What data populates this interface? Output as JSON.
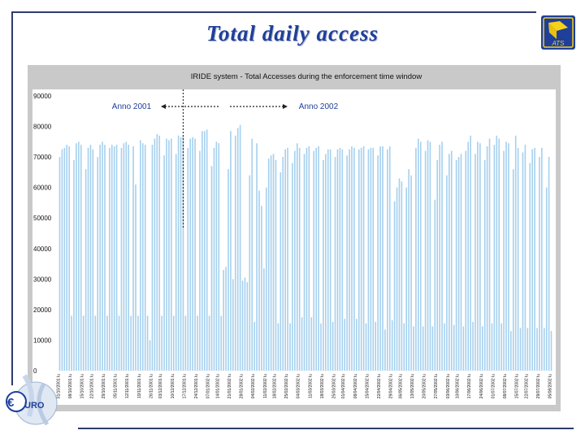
{
  "slide": {
    "title": "Total daily access",
    "logo_text": "ATS",
    "side_logo_text": "URO"
  },
  "colors": {
    "title": "#1f3f9a",
    "frame": "#2d3b6e",
    "bar": "#a6d0ee",
    "panel": "#c9c9c9",
    "divider": "#333333"
  },
  "chart_data": {
    "type": "bar",
    "title": "IRIDE system - Total Accesses during the enforcement time window",
    "xlabel": "",
    "ylabel": "",
    "ylim": [
      0,
      90000
    ],
    "yticks": [
      0,
      10000,
      20000,
      30000,
      40000,
      50000,
      60000,
      70000,
      80000,
      90000
    ],
    "grid": false,
    "legend": "none",
    "annotations": {
      "left_period": "Anno 2001",
      "right_period": "Anno 2002",
      "divider_after_index": 52
    },
    "x_tick_labels": [
      "01/10/2001 lu",
      "08/10/2001 lu",
      "15/10/2001 lu",
      "22/10/2001 lu",
      "29/10/2001 lu",
      "05/11/2001 lu",
      "12/11/2001 lu",
      "19/11/2001 lu",
      "26/11/2001 lu",
      "03/12/2001 lu",
      "10/12/2001 lu",
      "17/12/2001 lu",
      "24/12/2001 lu",
      "07/01/2002 lu",
      "14/01/2002 lu",
      "21/01/2002 lu",
      "28/01/2002 lu",
      "04/02/2002 lu",
      "11/02/2002 lu",
      "18/02/2002 lu",
      "25/02/2002 lu",
      "04/03/2002 lu",
      "11/03/2002 lu",
      "18/03/2002 lu",
      "25/03/2002 lu",
      "01/04/2002 lu",
      "08/04/2002 lu",
      "15/04/2002 lu",
      "22/04/2002 lu",
      "29/04/2002 lu",
      "06/05/2002 lu",
      "13/05/2002 lu",
      "20/05/2002 lu",
      "27/05/2002 lu",
      "03/06/2002 lu",
      "10/06/2002 lu",
      "17/06/2002 lu",
      "24/06/2002 lu",
      "01/07/2002 lu",
      "08/07/2002 lu",
      "15/07/2002 lu",
      "22/07/2002 lu",
      "29/07/2002 lu",
      "05/08/2002 lu"
    ],
    "values": [
      70000,
      72500,
      73000,
      74000,
      73500,
      18000,
      69000,
      74500,
      75000,
      74000,
      18000,
      66000,
      73000,
      74000,
      72500,
      18000,
      70000,
      74000,
      75000,
      74000,
      18000,
      73000,
      74000,
      73500,
      74000,
      18000,
      73000,
      74500,
      75000,
      74000,
      18000,
      73500,
      61000,
      18000,
      75500,
      74500,
      74000,
      18000,
      10000,
      74000,
      76000,
      77500,
      77000,
      18000,
      70500,
      76000,
      75500,
      76000,
      18000,
      71000,
      77000,
      76500,
      77000,
      18000,
      73000,
      76000,
      76500,
      76000,
      18000,
      72000,
      78500,
      78500,
      79000,
      18000,
      67000,
      73000,
      75000,
      74500,
      18000,
      33000,
      34000,
      66000,
      78500,
      30000,
      77000,
      79500,
      80500,
      29500,
      30500,
      29000,
      64000,
      76000,
      16000,
      74500,
      59000,
      54000,
      33500,
      60000,
      69500,
      70500,
      71000,
      69000,
      15500,
      65000,
      70000,
      72500,
      73000,
      15500,
      68000,
      72000,
      74500,
      73000,
      17500,
      71000,
      73000,
      73500,
      17500,
      72000,
      73000,
      73500,
      15500,
      69000,
      71000,
      72500,
      72500,
      16000,
      70000,
      72500,
      73000,
      72500,
      17000,
      70500,
      72500,
      73500,
      73000,
      17000,
      72500,
      73000,
      73500,
      15500,
      72500,
      73000,
      73000,
      16000,
      70500,
      73500,
      73500,
      13500,
      72500,
      73500,
      16500,
      55500,
      60000,
      63000,
      62000,
      15500,
      60000,
      66000,
      64000,
      14500,
      73000,
      76000,
      75000,
      14500,
      72000,
      75500,
      75000,
      14500,
      56000,
      69000,
      74000,
      75000,
      15500,
      64000,
      71000,
      72000,
      15000,
      69000,
      70000,
      71000,
      14500,
      72000,
      75000,
      77000,
      16000,
      71000,
      75000,
      74500,
      14500,
      69000,
      73500,
      76000,
      15500,
      74000,
      77000,
      76000,
      15500,
      72000,
      75000,
      74500,
      13000,
      66000,
      77000,
      73000,
      14000,
      71500,
      74000,
      14000,
      68000,
      72500,
      73000,
      14000,
      70000,
      73000,
      14000,
      60000,
      70000,
      13000
    ]
  }
}
